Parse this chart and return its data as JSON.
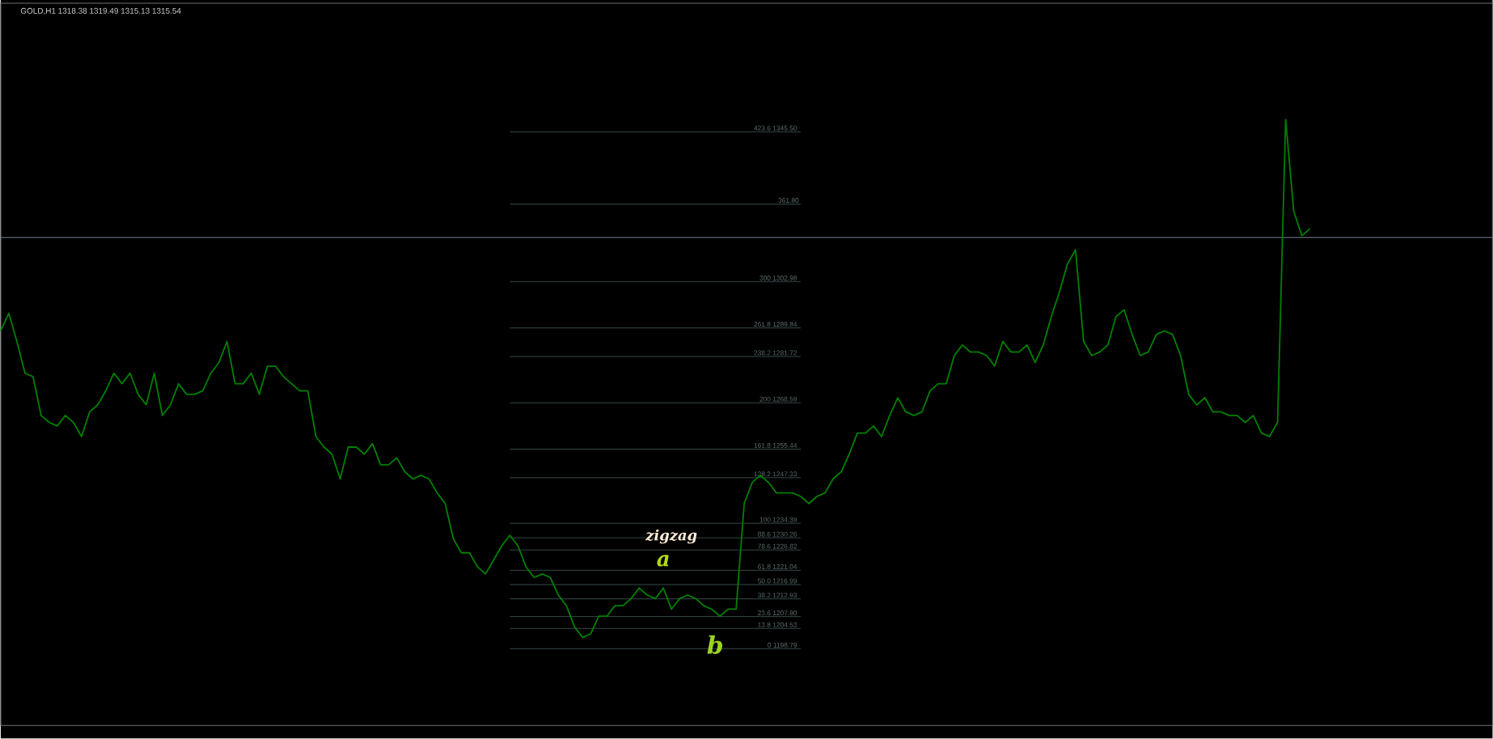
{
  "chart_data": {
    "type": "line",
    "title": "GOLD,H1 1318.38 1319.49 1315.13 1315.54",
    "categories": [
      null,
      null,
      null,
      null,
      null,
      null,
      null,
      null,
      null,
      null,
      null,
      null,
      null,
      null,
      null,
      null,
      null,
      null,
      null,
      null,
      null,
      null,
      null,
      null,
      null,
      null,
      null,
      null,
      null,
      null,
      null,
      null,
      null,
      null,
      null,
      null,
      null,
      null,
      null,
      null,
      null,
      null,
      null,
      null,
      null,
      null,
      null,
      null,
      null,
      null,
      null,
      null,
      null,
      null,
      null,
      null,
      null,
      null,
      null,
      null,
      null,
      null,
      null,
      null,
      null,
      null,
      null,
      null,
      null,
      null,
      null,
      null,
      null,
      null,
      null,
      null,
      null,
      null,
      null,
      null,
      null,
      null,
      null,
      null,
      null,
      null,
      null,
      null,
      null,
      null,
      null,
      null,
      null,
      null,
      null,
      null,
      null,
      null,
      null,
      null,
      null,
      null,
      null,
      null,
      null,
      null,
      null,
      null,
      null,
      null,
      null,
      null,
      null,
      null,
      null,
      null,
      null,
      null,
      null,
      null,
      null,
      null,
      null,
      null,
      null,
      null,
      null,
      null,
      null,
      null,
      null,
      null,
      null,
      null,
      null,
      null,
      null,
      null,
      null,
      null,
      null,
      null,
      null,
      null,
      null,
      null,
      null,
      null,
      null,
      null,
      null,
      null,
      null,
      null,
      null,
      null,
      null,
      null,
      null,
      null,
      null,
      null,
      null
    ],
    "values": [
      1289,
      1294,
      1286,
      1277,
      1276,
      1265,
      1263,
      1262,
      1265,
      1263,
      1259,
      1266,
      1268,
      1272,
      1277,
      1274,
      1277,
      1271,
      1268,
      1277,
      1265,
      1268,
      1274,
      1271,
      1271,
      1272,
      1277,
      1280,
      1286,
      1274,
      1274,
      1277,
      1271,
      1279,
      1279,
      1276,
      1274,
      1272,
      1272,
      1259,
      1256,
      1254,
      1247,
      1256,
      1256,
      1254,
      1257,
      1251,
      1251,
      1253,
      1249,
      1247,
      1248,
      1247,
      1243,
      1240,
      1230,
      1226,
      1226,
      1222,
      1220,
      1224,
      1228,
      1231,
      1228,
      1222,
      1219,
      1220,
      1219,
      1214,
      1211,
      1205,
      1202,
      1203,
      1208,
      1208,
      1211,
      1211,
      1213,
      1216,
      1214,
      1213,
      1216,
      1210,
      1213,
      1214,
      1213,
      1211,
      1210,
      1208,
      1210,
      1210,
      1240,
      1246,
      1248,
      1246,
      1243,
      1243,
      1243,
      1242,
      1240,
      1242,
      1243,
      1247,
      1249,
      1254,
      1260,
      1260,
      1262,
      1259,
      1265,
      1270,
      1266,
      1265,
      1266,
      1272,
      1274,
      1274,
      1282,
      1285,
      1283,
      1283,
      1282,
      1279,
      1286,
      1283,
      1283,
      1285,
      1280,
      1285,
      1293,
      1300,
      1308,
      1312,
      1286,
      1282,
      1283,
      1285,
      1293,
      1295,
      1288,
      1282,
      1283,
      1288,
      1289,
      1288,
      1282,
      1271,
      1268,
      1270,
      1266,
      1266,
      1265,
      1265,
      1263,
      1265,
      1260,
      1259,
      1263,
      1349,
      1323,
      1316,
      1318
    ],
    "color": "#008000",
    "ylim": [
      1177,
      1382
    ],
    "tick_labels": false,
    "ref_lines": [
      {
        "axis": "y",
        "value": 1345.5,
        "label": "423.6 1345.50",
        "color": "#354848"
      },
      {
        "axis": "y",
        "value": 1325,
        "label": null,
        "color": "#354848"
      },
      {
        "axis": "y",
        "value": 1315.54,
        "color": "#5a6270"
      },
      {
        "axis": "y",
        "value": 1302.98,
        "label": "300 1302.98",
        "color": "#354848"
      },
      {
        "axis": "y",
        "value": 1289.84,
        "label": "261.8 1289.84",
        "color": "#354848"
      },
      {
        "axis": "y",
        "value": 1281.72,
        "label": "238.2 1281.72",
        "color": "#354848"
      },
      {
        "axis": "y",
        "value": 1268.59,
        "label": "200 1268.59",
        "color": "#354848"
      },
      {
        "axis": "y",
        "value": 1255.44,
        "label": "161.8 1255.44",
        "color": "#354848"
      },
      {
        "axis": "y",
        "value": 1247.33,
        "label": "138.2 1247.33",
        "color": "#354848"
      },
      {
        "axis": "y",
        "value": 1234.39,
        "label": "100 1234.39",
        "color": "#354848"
      },
      {
        "axis": "y",
        "value": 1230.26,
        "label": "88.6 1230.26",
        "color": "#354848"
      },
      {
        "axis": "y",
        "value": 1226.82,
        "label": "78.6 1226.82",
        "color": "#354848"
      },
      {
        "axis": "y",
        "value": 1221.04,
        "label": "61.8 1221.04",
        "color": "#354848"
      },
      {
        "axis": "y",
        "value": 1216.99,
        "label": "50.0 1216.99",
        "color": "#354848"
      },
      {
        "axis": "y",
        "value": 1212.93,
        "label": "38.2 1212.93",
        "color": "#354848"
      },
      {
        "axis": "y",
        "value": 1207.9,
        "label": "23.6 1207.90",
        "color": "#354848"
      },
      {
        "axis": "y",
        "value": 1204.53,
        "label": "13.8 1204.53",
        "color": "#354848"
      },
      {
        "axis": "y",
        "value": 1198.79,
        "label": "0 1198.79",
        "color": "#354848"
      }
    ],
    "annotations": [
      "zigzag",
      "a",
      "b",
      "361.80"
    ]
  }
}
